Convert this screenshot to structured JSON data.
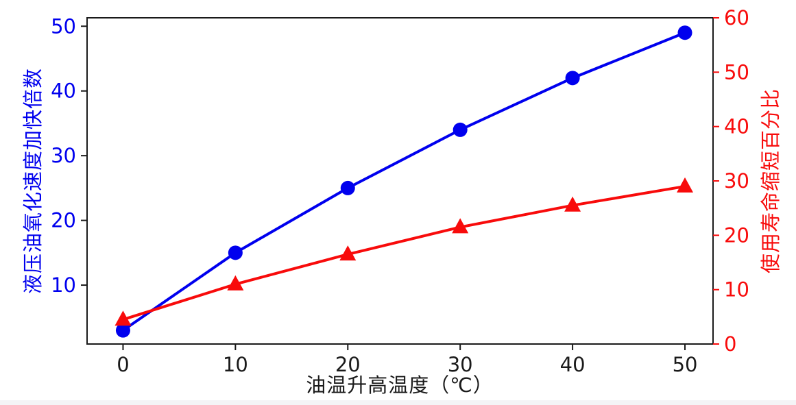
{
  "figure": {
    "background": "#ffffff",
    "footer_strip_color": "#f4f4f6"
  },
  "chart_data": {
    "type": "line",
    "title": "",
    "grid": false,
    "legend": "none",
    "x": [
      0,
      10,
      20,
      30,
      40,
      50
    ],
    "x_ticks": [
      "0",
      "10",
      "20",
      "30",
      "40",
      "50"
    ],
    "xlabel": "油温升高温度（℃）",
    "xlim": [
      -3.2,
      52.5
    ],
    "x_axis_color": "#1a1a1a",
    "axes": {
      "left": {
        "label": "液压油氧化速度加快倍数",
        "color": "#0000ee",
        "ticks": [
          10,
          20,
          30,
          40,
          50
        ],
        "lim": [
          0.9,
          51.3
        ]
      },
      "right": {
        "label": "使用寿命缩短百分比",
        "color": "#f80b0b",
        "ticks": [
          0,
          10,
          20,
          30,
          40,
          50,
          60
        ],
        "lim": [
          0,
          60
        ]
      }
    },
    "series": [
      {
        "name": "液压油氧化速度加快倍数",
        "axis": "left",
        "color": "#0000ee",
        "marker": "circle",
        "values": [
          3,
          15,
          25,
          34,
          42,
          49
        ]
      },
      {
        "name": "使用寿命缩短百分比",
        "axis": "right",
        "color": "#f80b0b",
        "marker": "triangle",
        "values": [
          4.5,
          11,
          16.5,
          21.5,
          25.5,
          29
        ]
      }
    ]
  }
}
